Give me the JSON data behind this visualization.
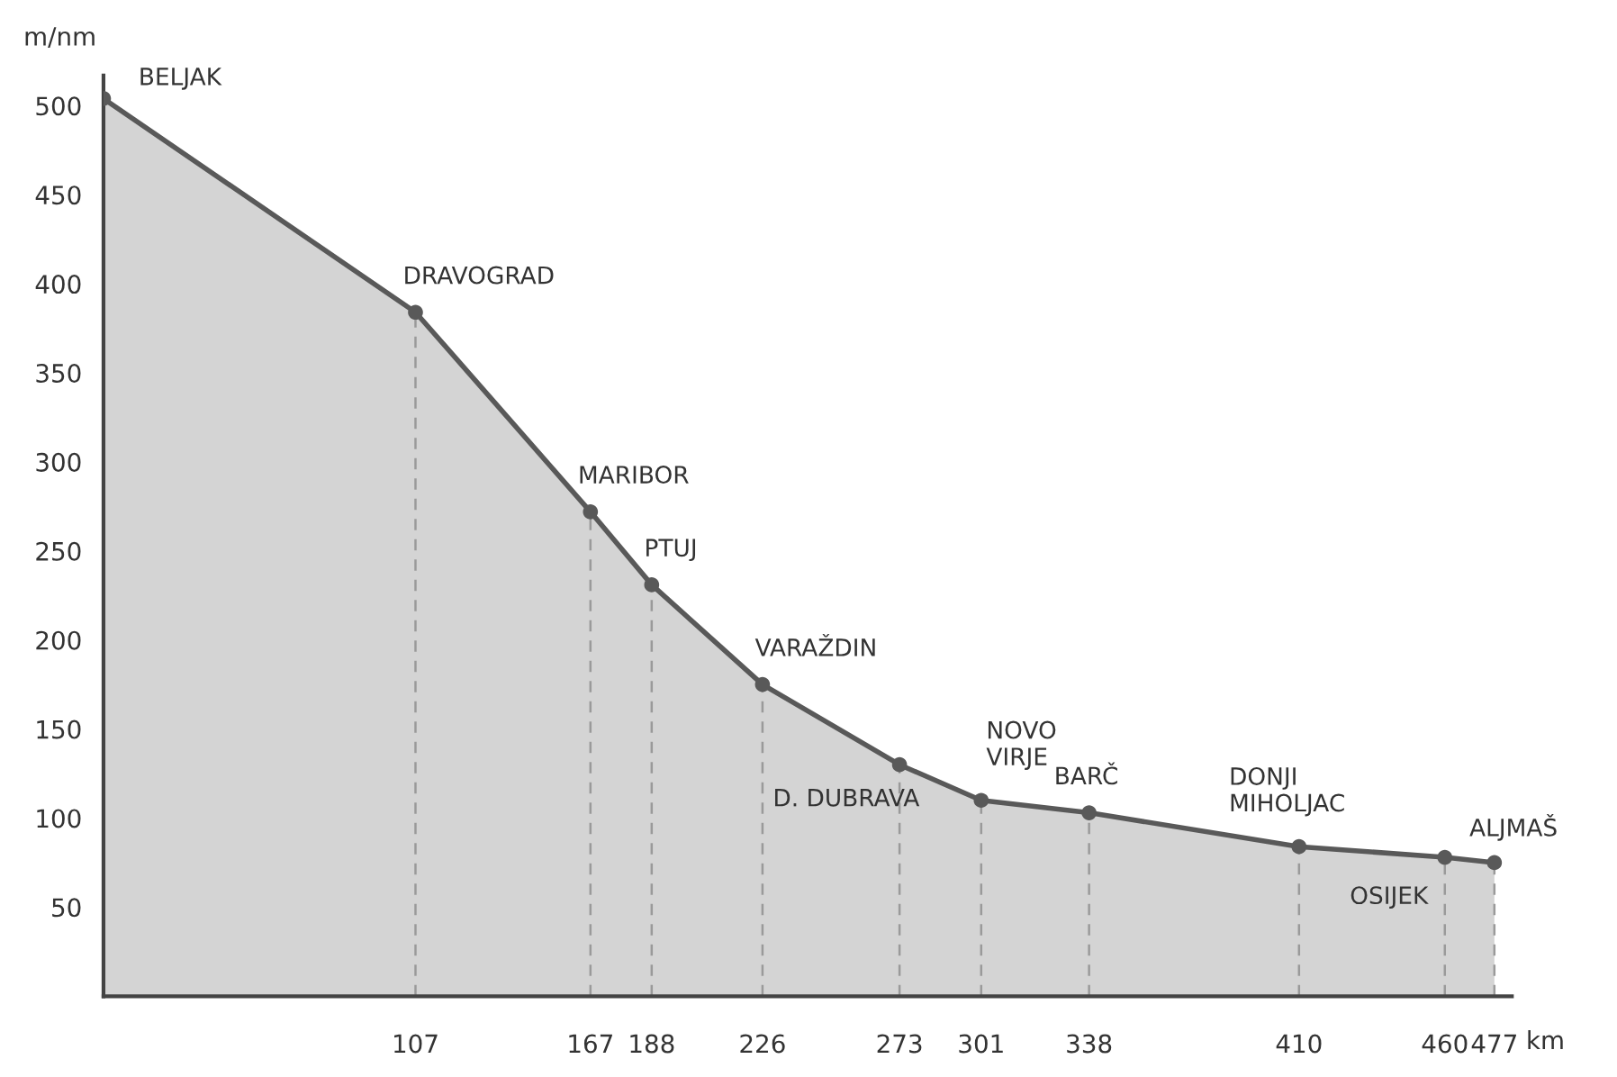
{
  "chart_data": {
    "type": "area",
    "xlabel": "km",
    "ylabel": "m/nm",
    "x": [
      0,
      107,
      167,
      188,
      226,
      273,
      301,
      338,
      410,
      460,
      477
    ],
    "series": [
      {
        "color": "#595959",
        "values": [
          504,
          384,
          272,
          231,
          175,
          130,
          110,
          103,
          84,
          78,
          75
        ]
      }
    ],
    "xlim": [
      0,
      483
    ],
    "ylim": [
      0,
      517
    ],
    "xticks": [
      107,
      167,
      188,
      226,
      273,
      301,
      338,
      410,
      460,
      477
    ],
    "yticks": [
      50,
      100,
      150,
      200,
      250,
      300,
      350,
      400,
      450,
      500
    ],
    "marker": "circle",
    "grid": "x",
    "legend": false,
    "annotations": [
      {
        "text": "BELJAK",
        "x": 0,
        "y": 504
      },
      {
        "text": "DRAVOGRAD",
        "x": 107,
        "y": 384
      },
      {
        "text": "MARIBOR",
        "x": 167,
        "y": 272
      },
      {
        "text": "PTUJ",
        "x": 188,
        "y": 231
      },
      {
        "text": "VARAŽDIN",
        "x": 226,
        "y": 175
      },
      {
        "text": "D. DUBRAVA",
        "x": 273,
        "y": 130
      },
      {
        "text": "NOVO\nVIRJE",
        "x": 301,
        "y": 110
      },
      {
        "text": "BARČ",
        "x": 338,
        "y": 103
      },
      {
        "text": "DONJI\nMIHOLJAC",
        "x": 410,
        "y": 84
      },
      {
        "text": "OSIJEK",
        "x": 460,
        "y": 78
      },
      {
        "text": "ALJMAŠ",
        "x": 477,
        "y": 75
      }
    ]
  }
}
